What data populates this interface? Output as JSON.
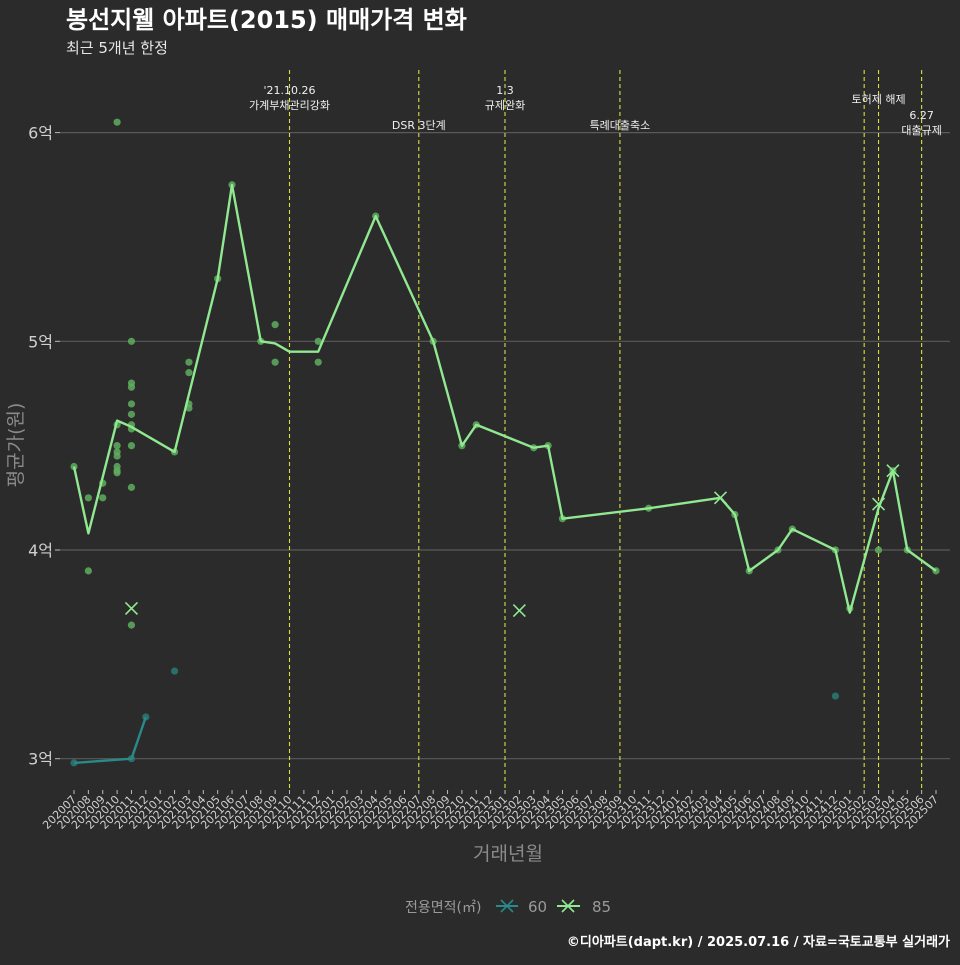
{
  "colors": {
    "background": "#2b2b2b",
    "grid": "#5a5a5a",
    "series_60": "#2a8a8a",
    "series_85": "#90e890",
    "points_85": "#5fae5f",
    "points_60": "#2a7a76",
    "event_line": "#d8e040",
    "title": "#ffffff",
    "subtitle": "#e6e6e6",
    "axis_label": "#8a8a8a",
    "tick": "#d0d0d0"
  },
  "chart_data": {
    "type": "line",
    "title": "봉선지웰 아파트(2015) 매매가격 변화",
    "subtitle": "최근 5개년 한정",
    "xlabel": "거래년월",
    "ylabel": "평균가(원)",
    "ylim": [
      2.85,
      6.3
    ],
    "y_ticks": [
      {
        "value": 3,
        "label": "3억"
      },
      {
        "value": 4,
        "label": "4억"
      },
      {
        "value": 5,
        "label": "5억"
      },
      {
        "value": 6,
        "label": "6억"
      }
    ],
    "categories": [
      "202007",
      "202008",
      "202009",
      "202010",
      "202011",
      "202012",
      "202101",
      "202102",
      "202103",
      "202104",
      "202105",
      "202106",
      "202107",
      "202108",
      "202109",
      "202110",
      "202111",
      "202112",
      "202201",
      "202202",
      "202203",
      "202204",
      "202205",
      "202206",
      "202207",
      "202208",
      "202209",
      "202210",
      "202211",
      "202212",
      "202301",
      "202302",
      "202303",
      "202304",
      "202305",
      "202306",
      "202307",
      "202308",
      "202309",
      "202310",
      "202311",
      "202312",
      "202401",
      "202402",
      "202403",
      "202404",
      "202405",
      "202406",
      "202407",
      "202408",
      "202409",
      "202410",
      "202411",
      "202412",
      "202501",
      "202502",
      "202503",
      "202504",
      "202505",
      "202506",
      "202507"
    ],
    "legend_title": "전용면적(㎡)",
    "series": [
      {
        "name": "60",
        "line": [
          [
            "202007",
            2.98
          ],
          [
            "202011",
            3.0
          ],
          [
            "202012",
            3.2
          ]
        ],
        "points": [
          [
            "202007",
            2.98
          ],
          [
            "202011",
            3.0
          ],
          [
            "202012",
            3.2
          ],
          [
            "202102",
            3.42
          ],
          [
            "202412",
            3.3
          ]
        ],
        "crosses": []
      },
      {
        "name": "85",
        "line": [
          [
            "202007",
            4.4
          ],
          [
            "202008",
            4.08
          ],
          [
            "202010",
            4.62
          ],
          [
            "202011",
            4.59
          ],
          [
            "202102",
            4.47
          ],
          [
            "202105",
            5.3
          ],
          [
            "202106",
            5.75
          ],
          [
            "202108",
            5.0
          ],
          [
            "202109",
            4.99
          ],
          [
            "202110",
            4.95
          ],
          [
            "202112",
            4.95
          ],
          [
            "202204",
            5.6
          ],
          [
            "202208",
            5.0
          ],
          [
            "202210",
            4.5
          ],
          [
            "202211",
            4.6
          ],
          [
            "202303",
            4.49
          ],
          [
            "202304",
            4.5
          ],
          [
            "202305",
            4.15
          ],
          [
            "202311",
            4.2
          ],
          [
            "202404",
            4.25
          ],
          [
            "202405",
            4.17
          ],
          [
            "202406",
            3.9
          ],
          [
            "202408",
            4.0
          ],
          [
            "202409",
            4.1
          ],
          [
            "202412",
            4.0
          ],
          [
            "202501",
            3.7
          ],
          [
            "202503",
            4.2
          ],
          [
            "202504",
            4.38
          ],
          [
            "202505",
            4.0
          ],
          [
            "202507",
            3.9
          ]
        ],
        "points": [
          [
            "202007",
            4.4
          ],
          [
            "202008",
            4.25
          ],
          [
            "202008",
            3.9
          ],
          [
            "202009",
            4.25
          ],
          [
            "202009",
            4.32
          ],
          [
            "202010",
            4.6
          ],
          [
            "202010",
            4.5
          ],
          [
            "202010",
            4.47
          ],
          [
            "202010",
            4.45
          ],
          [
            "202010",
            4.4
          ],
          [
            "202010",
            4.38
          ],
          [
            "202010",
            4.37
          ],
          [
            "202010",
            6.05
          ],
          [
            "202011",
            5.0
          ],
          [
            "202011",
            4.8
          ],
          [
            "202011",
            4.78
          ],
          [
            "202011",
            4.7
          ],
          [
            "202011",
            4.65
          ],
          [
            "202011",
            4.6
          ],
          [
            "202011",
            4.58
          ],
          [
            "202011",
            4.5
          ],
          [
            "202011",
            4.3
          ],
          [
            "202011",
            3.64
          ],
          [
            "202102",
            4.47
          ],
          [
            "202103",
            4.9
          ],
          [
            "202103",
            4.85
          ],
          [
            "202103",
            4.7
          ],
          [
            "202103",
            4.68
          ],
          [
            "202105",
            5.3
          ],
          [
            "202106",
            5.75
          ],
          [
            "202108",
            5.0
          ],
          [
            "202109",
            5.08
          ],
          [
            "202109",
            4.9
          ],
          [
            "202112",
            5.0
          ],
          [
            "202112",
            4.9
          ],
          [
            "202204",
            5.6
          ],
          [
            "202208",
            5.0
          ],
          [
            "202210",
            4.5
          ],
          [
            "202211",
            4.6
          ],
          [
            "202303",
            4.49
          ],
          [
            "202304",
            4.5
          ],
          [
            "202305",
            4.15
          ],
          [
            "202311",
            4.2
          ],
          [
            "202405",
            4.17
          ],
          [
            "202406",
            3.9
          ],
          [
            "202408",
            4.0
          ],
          [
            "202409",
            4.1
          ],
          [
            "202412",
            4.0
          ],
          [
            "202501",
            3.72
          ],
          [
            "202503",
            4.0
          ],
          [
            "202504",
            4.38
          ],
          [
            "202505",
            4.0
          ],
          [
            "202507",
            3.9
          ]
        ],
        "crosses": [
          [
            "202011",
            3.72
          ],
          [
            "202302",
            3.71
          ],
          [
            "202404",
            4.25
          ],
          [
            "202503",
            4.22
          ],
          [
            "202504",
            4.38
          ]
        ]
      }
    ],
    "events": [
      {
        "month": "202110",
        "offset": 0.0,
        "lines": [
          "'21.10.26",
          "가계부채관리강화"
        ]
      },
      {
        "month": "202207",
        "offset": 0.0,
        "lines": [
          "DSR 3단계"
        ]
      },
      {
        "month": "202301",
        "offset": 0.0,
        "lines": [
          "1.3",
          "규제완화"
        ]
      },
      {
        "month": "202309",
        "offset": 0.0,
        "lines": [
          "특례대출축소"
        ]
      },
      {
        "month": "202502",
        "offset": 0.0,
        "lines": []
      },
      {
        "month": "202503",
        "offset": 0.0,
        "lines": [
          "토허제 해제"
        ]
      },
      {
        "month": "202506",
        "offset": 0.0,
        "lines": [
          "6.27",
          "대출규제"
        ]
      }
    ]
  },
  "footer": {
    "credit": "©디아파트(dapt.kr) / 2025.07.16 / 자료=국토교통부 실거래가"
  }
}
